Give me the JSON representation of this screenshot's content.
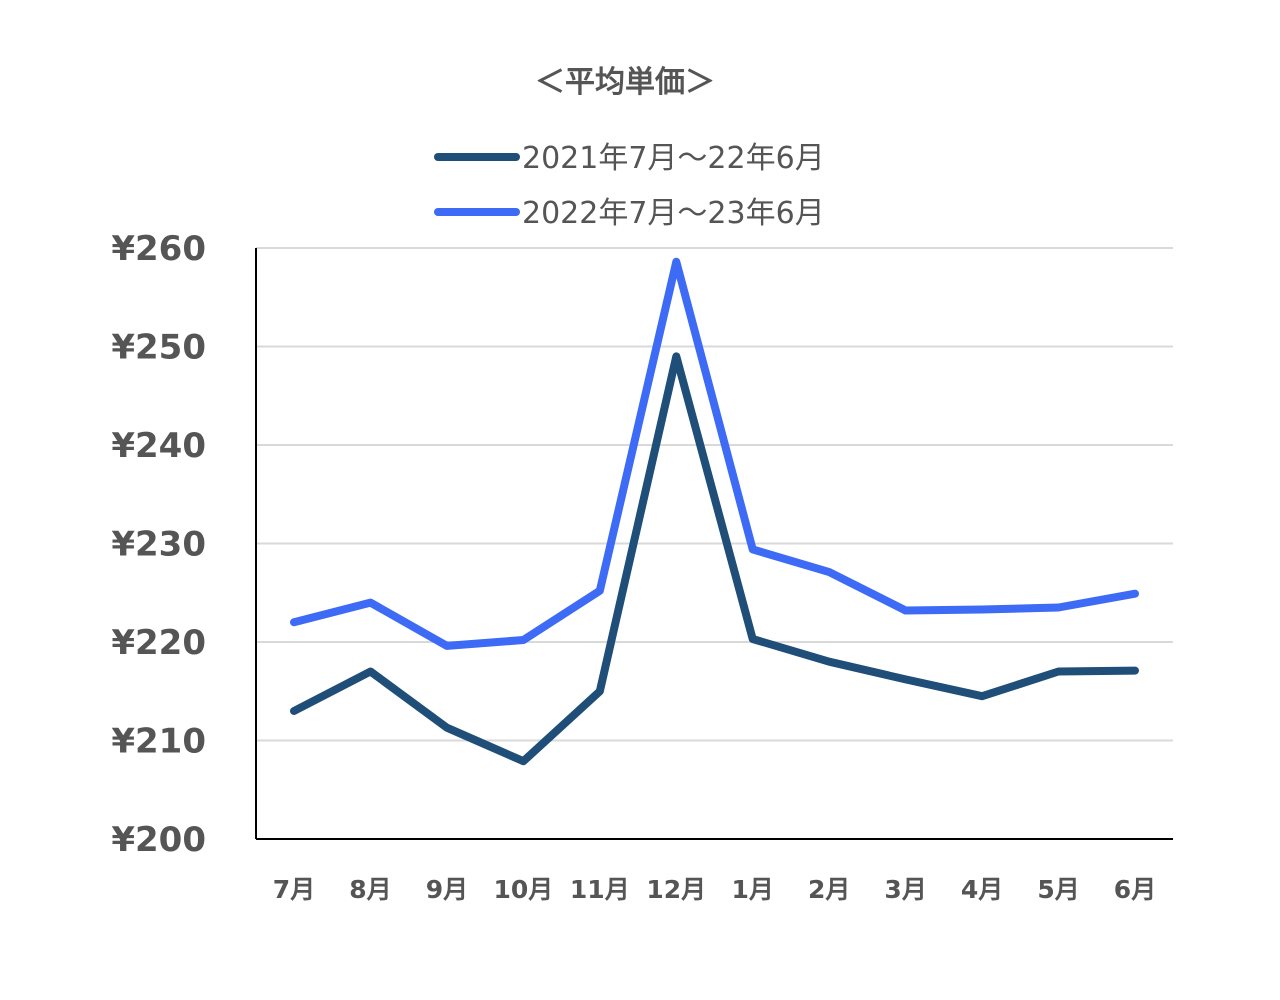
{
  "chart_data": {
    "type": "line",
    "title": "＜平均単価＞",
    "categories": [
      "7月",
      "8月",
      "9月",
      "10月",
      "11月",
      "12月",
      "1月",
      "2月",
      "3月",
      "4月",
      "5月",
      "6月"
    ],
    "ylim": [
      200,
      260
    ],
    "yticks": [
      200,
      210,
      220,
      230,
      240,
      250,
      260
    ],
    "ytick_labels": [
      "¥200",
      "¥210",
      "¥220",
      "¥230",
      "¥240",
      "¥250",
      "¥260"
    ],
    "grid": true,
    "legend_position": "top-center",
    "series": [
      {
        "name": "2021年7月～22年6月",
        "color": "#1f4e79",
        "values": [
          213,
          217,
          211.3,
          207.9,
          215,
          249,
          220.3,
          218,
          216.2,
          214.5,
          217,
          217.1
        ]
      },
      {
        "name": "2022年7月～23年6月",
        "color": "#3d6bf5",
        "values": [
          222,
          224,
          219.6,
          220.2,
          225.2,
          258.6,
          229.4,
          227.1,
          223.2,
          223.3,
          223.5,
          224.9
        ]
      }
    ]
  }
}
